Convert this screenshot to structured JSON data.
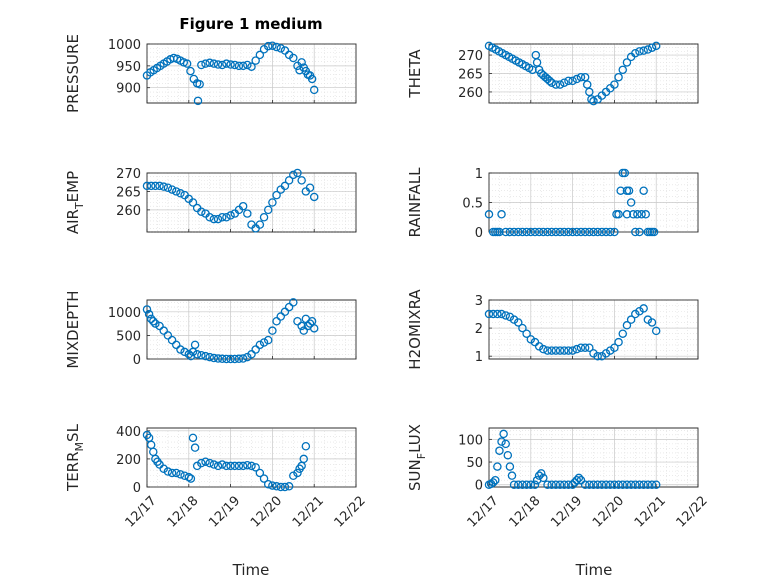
{
  "figure": {
    "background": "#ffffff",
    "marker_color": "#0072bd",
    "title": "Figure 1 medium",
    "time_axis_label": "Time",
    "time_ticks": [
      "12/17",
      "12/18",
      "12/19",
      "12/20",
      "12/21",
      "12/22"
    ]
  },
  "chart_data": [
    {
      "type": "scatter",
      "ylabel": "PRESSURE",
      "ylim": [
        865,
        1000
      ],
      "yticks": [
        900,
        950,
        1000
      ],
      "x": [
        17.0,
        17.08,
        17.16,
        17.24,
        17.32,
        17.4,
        17.48,
        17.56,
        17.64,
        17.72,
        17.8,
        17.88,
        17.96,
        18.04,
        18.12,
        18.2,
        18.22,
        18.26,
        18.3,
        18.4,
        18.5,
        18.6,
        18.7,
        18.8,
        18.9,
        19.0,
        19.1,
        19.2,
        19.3,
        19.4,
        19.5,
        19.6,
        19.7,
        19.8,
        19.9,
        20.0,
        20.1,
        20.2,
        20.3,
        20.4,
        20.5,
        20.6,
        20.65,
        20.7,
        20.75,
        20.8,
        20.85,
        20.9,
        20.95,
        21.0
      ],
      "y": [
        928,
        935,
        940,
        945,
        950,
        955,
        960,
        965,
        968,
        966,
        962,
        958,
        955,
        938,
        920,
        910,
        870,
        908,
        952,
        955,
        957,
        955,
        953,
        952,
        955,
        953,
        952,
        950,
        950,
        952,
        948,
        962,
        975,
        988,
        995,
        996,
        993,
        990,
        985,
        975,
        968,
        950,
        940,
        958,
        946,
        938,
        930,
        928,
        920,
        895
      ]
    },
    {
      "type": "scatter",
      "ylabel": "THETA",
      "ylim": [
        257,
        273
      ],
      "yticks": [
        260,
        265,
        270
      ],
      "x": [
        17.0,
        17.08,
        17.16,
        17.24,
        17.32,
        17.4,
        17.48,
        17.56,
        17.64,
        17.72,
        17.8,
        17.88,
        17.96,
        18.04,
        18.12,
        18.15,
        18.2,
        18.25,
        18.3,
        18.35,
        18.4,
        18.45,
        18.5,
        18.6,
        18.7,
        18.8,
        18.9,
        19.0,
        19.1,
        19.2,
        19.3,
        19.35,
        19.4,
        19.45,
        19.5,
        19.6,
        19.7,
        19.8,
        19.9,
        20.0,
        20.1,
        20.2,
        20.3,
        20.4,
        20.5,
        20.6,
        20.7,
        20.8,
        20.9,
        21.0
      ],
      "y": [
        272.5,
        272,
        271.5,
        271,
        270.5,
        270,
        269.5,
        269,
        268.5,
        268,
        267.5,
        267,
        266.5,
        266,
        270,
        268,
        266,
        265,
        264.5,
        264,
        263.5,
        263,
        262.5,
        262,
        262,
        262.5,
        263,
        263,
        263.5,
        264,
        264,
        262,
        260,
        258,
        257.5,
        258,
        259,
        260,
        261,
        262,
        264,
        266,
        268,
        269.5,
        270.5,
        271,
        271.2,
        271.5,
        272,
        272.5
      ]
    },
    {
      "type": "scatter",
      "ylabel": "AIR_TEMP",
      "ylim": [
        254,
        270
      ],
      "yticks": [
        260,
        265,
        270
      ],
      "x": [
        17.0,
        17.1,
        17.2,
        17.3,
        17.4,
        17.5,
        17.6,
        17.7,
        17.8,
        17.9,
        18.0,
        18.1,
        18.2,
        18.3,
        18.4,
        18.5,
        18.6,
        18.7,
        18.8,
        18.9,
        19.0,
        19.1,
        19.2,
        19.3,
        19.4,
        19.5,
        19.6,
        19.7,
        19.8,
        19.9,
        20.0,
        20.1,
        20.2,
        20.3,
        20.4,
        20.5,
        20.6,
        20.7,
        20.8,
        20.9,
        21.0
      ],
      "y": [
        266.5,
        266.5,
        266.5,
        266.5,
        266.3,
        266,
        265.5,
        265,
        264.5,
        264,
        263,
        262,
        260.5,
        259.5,
        259,
        258,
        257.5,
        257.5,
        258,
        258,
        258.5,
        259,
        260,
        261,
        259,
        256,
        255,
        256,
        258,
        260,
        262,
        264,
        265.5,
        266.5,
        268,
        269.5,
        270,
        268,
        265,
        266,
        263.5
      ]
    },
    {
      "type": "scatter",
      "ylabel": "RAINFALL",
      "ylim": [
        0,
        1
      ],
      "yticks": [
        0,
        0.5,
        1
      ],
      "x": [
        17.0,
        17.1,
        17.15,
        17.2,
        17.25,
        17.3,
        17.4,
        17.5,
        17.6,
        17.7,
        17.8,
        17.9,
        18.0,
        18.1,
        18.2,
        18.3,
        18.4,
        18.5,
        18.6,
        18.7,
        18.8,
        18.9,
        19.0,
        19.1,
        19.2,
        19.3,
        19.4,
        19.5,
        19.6,
        19.7,
        19.8,
        19.9,
        20.0,
        20.05,
        20.1,
        20.15,
        20.2,
        20.25,
        20.3,
        20.3,
        20.35,
        20.4,
        20.45,
        20.5,
        20.55,
        20.6,
        20.65,
        20.7,
        20.75,
        20.8,
        20.85,
        20.9,
        20.95
      ],
      "y": [
        0.3,
        0,
        0,
        0,
        0,
        0.3,
        0,
        0,
        0,
        0,
        0,
        0,
        0,
        0,
        0,
        0,
        0,
        0,
        0,
        0,
        0,
        0,
        0,
        0,
        0,
        0,
        0,
        0,
        0,
        0,
        0,
        0,
        0,
        0.3,
        0.3,
        0.7,
        1,
        1,
        0.7,
        0.3,
        0.7,
        0.5,
        0.3,
        0,
        0.3,
        0,
        0.3,
        0.7,
        0.3,
        0,
        0,
        0,
        0
      ]
    },
    {
      "type": "scatter",
      "ylabel": "MIXDEPTH",
      "ylim": [
        0,
        1250
      ],
      "yticks": [
        0,
        500,
        1000
      ],
      "x": [
        17.0,
        17.05,
        17.1,
        17.15,
        17.2,
        17.3,
        17.4,
        17.5,
        17.6,
        17.7,
        17.8,
        17.9,
        18.0,
        18.05,
        18.1,
        18.15,
        18.2,
        18.3,
        18.4,
        18.5,
        18.6,
        18.7,
        18.8,
        18.9,
        19.0,
        19.1,
        19.2,
        19.3,
        19.4,
        19.5,
        19.6,
        19.7,
        19.8,
        19.9,
        20.0,
        20.1,
        20.2,
        20.3,
        20.4,
        20.5,
        20.6,
        20.7,
        20.75,
        20.8,
        20.85,
        20.9,
        20.95,
        21.0
      ],
      "y": [
        1050,
        950,
        850,
        800,
        750,
        700,
        600,
        500,
        400,
        300,
        200,
        150,
        100,
        60,
        150,
        300,
        100,
        80,
        60,
        40,
        20,
        10,
        5,
        0,
        0,
        0,
        5,
        10,
        40,
        100,
        200,
        300,
        350,
        400,
        600,
        800,
        900,
        1000,
        1100,
        1200,
        800,
        700,
        600,
        850,
        700,
        750,
        800,
        650
      ]
    },
    {
      "type": "scatter",
      "ylabel": "H2OMIXRA",
      "ylim": [
        0.9,
        3
      ],
      "yticks": [
        1,
        2,
        3
      ],
      "x": [
        17.0,
        17.1,
        17.2,
        17.3,
        17.4,
        17.5,
        17.6,
        17.7,
        17.8,
        17.9,
        18.0,
        18.1,
        18.2,
        18.3,
        18.4,
        18.5,
        18.6,
        18.7,
        18.8,
        18.9,
        19.0,
        19.1,
        19.2,
        19.3,
        19.4,
        19.5,
        19.6,
        19.7,
        19.8,
        19.9,
        20.0,
        20.1,
        20.2,
        20.3,
        20.4,
        20.5,
        20.6,
        20.7,
        20.8,
        20.9,
        21.0
      ],
      "y": [
        2.5,
        2.5,
        2.5,
        2.5,
        2.45,
        2.4,
        2.3,
        2.2,
        2.0,
        1.8,
        1.6,
        1.5,
        1.35,
        1.25,
        1.2,
        1.2,
        1.2,
        1.2,
        1.2,
        1.2,
        1.2,
        1.25,
        1.3,
        1.3,
        1.3,
        1.1,
        1.0,
        1.0,
        1.1,
        1.2,
        1.3,
        1.5,
        1.8,
        2.1,
        2.3,
        2.5,
        2.6,
        2.7,
        2.3,
        2.2,
        1.9
      ]
    },
    {
      "type": "scatter",
      "ylabel": "TERR_MSL",
      "ylim": [
        0,
        420
      ],
      "yticks": [
        0,
        200,
        400
      ],
      "x": [
        17.0,
        17.05,
        17.1,
        17.15,
        17.2,
        17.25,
        17.3,
        17.4,
        17.5,
        17.6,
        17.7,
        17.8,
        17.9,
        18.0,
        18.05,
        18.1,
        18.15,
        18.2,
        18.3,
        18.4,
        18.5,
        18.6,
        18.7,
        18.8,
        18.9,
        19.0,
        19.1,
        19.2,
        19.3,
        19.4,
        19.5,
        19.6,
        19.7,
        19.8,
        19.9,
        20.0,
        20.1,
        20.2,
        20.3,
        20.4,
        20.5,
        20.6,
        20.65,
        20.7,
        20.75,
        20.8
      ],
      "y": [
        370,
        350,
        300,
        250,
        200,
        180,
        160,
        130,
        110,
        100,
        100,
        90,
        80,
        70,
        60,
        350,
        280,
        150,
        170,
        180,
        170,
        160,
        150,
        160,
        150,
        150,
        150,
        150,
        150,
        155,
        150,
        140,
        100,
        60,
        20,
        10,
        5,
        0,
        0,
        5,
        80,
        100,
        130,
        150,
        200,
        290
      ]
    },
    {
      "type": "scatter",
      "ylabel": "SUN_FLUX",
      "ylim": [
        -5,
        125
      ],
      "yticks": [
        0,
        50,
        100
      ],
      "x": [
        17.0,
        17.05,
        17.1,
        17.15,
        17.2,
        17.25,
        17.3,
        17.35,
        17.4,
        17.45,
        17.5,
        17.55,
        17.6,
        17.7,
        17.8,
        17.9,
        18.0,
        18.1,
        18.15,
        18.2,
        18.25,
        18.3,
        18.4,
        18.5,
        18.6,
        18.7,
        18.8,
        18.9,
        19.0,
        19.05,
        19.1,
        19.15,
        19.2,
        19.3,
        19.4,
        19.5,
        19.6,
        19.7,
        19.8,
        19.9,
        20.0,
        20.1,
        20.2,
        20.3,
        20.4,
        20.5,
        20.6,
        20.7,
        20.8,
        20.9,
        21.0
      ],
      "y": [
        0,
        2,
        5,
        10,
        40,
        75,
        95,
        112,
        90,
        65,
        40,
        20,
        0,
        0,
        0,
        0,
        0,
        0,
        10,
        20,
        25,
        15,
        0,
        0,
        0,
        0,
        0,
        0,
        0,
        5,
        10,
        15,
        10,
        0,
        0,
        0,
        0,
        0,
        0,
        0,
        0,
        0,
        0,
        0,
        0,
        0,
        0,
        0,
        0,
        0,
        0
      ]
    }
  ]
}
